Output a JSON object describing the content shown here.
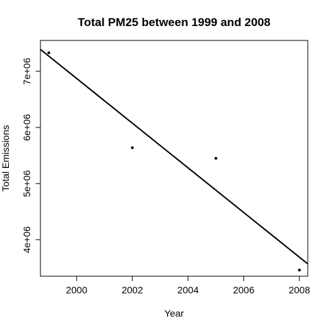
{
  "chart_data": {
    "type": "scatter",
    "title": "Total PM25 between 1999 and 2008",
    "xlabel": "Year",
    "ylabel": "Total Emissions",
    "xlim": [
      1998.7,
      2008.3
    ],
    "ylim": [
      3350000,
      7550000
    ],
    "x_ticks": [
      2000,
      2002,
      2004,
      2006,
      2008
    ],
    "x_tick_labels": [
      "2000",
      "2002",
      "2004",
      "2006",
      "2008"
    ],
    "y_ticks": [
      4000000,
      5000000,
      6000000,
      7000000
    ],
    "y_tick_labels": [
      "4e+06",
      "5e+06",
      "6e+06",
      "7e+06"
    ],
    "points": [
      {
        "x": 1999,
        "y": 7330000
      },
      {
        "x": 2002,
        "y": 5640000
      },
      {
        "x": 2005,
        "y": 5450000
      },
      {
        "x": 2008,
        "y": 3460000
      }
    ],
    "trend_line": {
      "x": [
        1998.7,
        2008.3
      ],
      "y": [
        7390000,
        3570000
      ]
    },
    "grid": false,
    "legend": "none"
  }
}
